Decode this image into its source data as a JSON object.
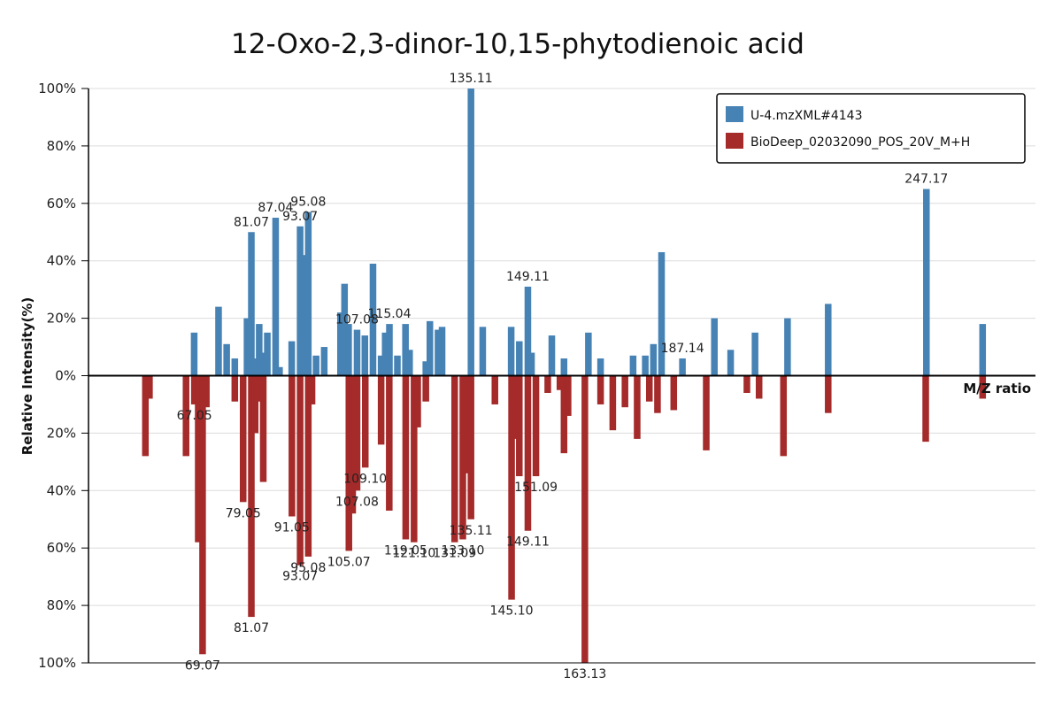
{
  "chart_data": {
    "type": "bar",
    "subtype": "mirror-spectrum",
    "title": "12-Oxo-2,3-dinor-10,15-phytodienoic acid",
    "xlabel": "M/Z ratio",
    "ylabel": "Relative Intensity(%)",
    "ylim": [
      -100,
      100
    ],
    "ytick_values": [
      100,
      80,
      60,
      40,
      20,
      0,
      -20,
      -40,
      -60,
      -80,
      -100
    ],
    "ytick_labels": [
      "100%",
      "80%",
      "60%",
      "40%",
      "20%",
      "0%",
      "20%",
      "40%",
      "60%",
      "80%",
      "100%"
    ],
    "x_range": [
      41,
      274
    ],
    "grid": true,
    "legend_position": "top-right",
    "series": [
      {
        "name": "U-4.mzXML#4143",
        "color": "#4682b4",
        "direction": "up",
        "points": [
          {
            "mz": 67.0,
            "i": 15
          },
          {
            "mz": 73.0,
            "i": 24
          },
          {
            "mz": 75.0,
            "i": 11
          },
          {
            "mz": 77.0,
            "i": 6
          },
          {
            "mz": 80.0,
            "i": 20
          },
          {
            "mz": 81.07,
            "i": 50
          },
          {
            "mz": 82.0,
            "i": 6
          },
          {
            "mz": 83.0,
            "i": 18
          },
          {
            "mz": 84.0,
            "i": 8
          },
          {
            "mz": 85.0,
            "i": 15
          },
          {
            "mz": 87.04,
            "i": 55
          },
          {
            "mz": 88.0,
            "i": 3
          },
          {
            "mz": 91.0,
            "i": 12
          },
          {
            "mz": 93.07,
            "i": 52
          },
          {
            "mz": 94.0,
            "i": 42
          },
          {
            "mz": 95.08,
            "i": 57
          },
          {
            "mz": 97.0,
            "i": 7
          },
          {
            "mz": 99.0,
            "i": 10
          },
          {
            "mz": 103.0,
            "i": 22
          },
          {
            "mz": 104.0,
            "i": 32
          },
          {
            "mz": 105.0,
            "i": 18
          },
          {
            "mz": 107.08,
            "i": 16
          },
          {
            "mz": 109.0,
            "i": 14
          },
          {
            "mz": 111.0,
            "i": 39
          },
          {
            "mz": 113.0,
            "i": 7
          },
          {
            "mz": 114.0,
            "i": 15
          },
          {
            "mz": 115.04,
            "i": 18
          },
          {
            "mz": 117.0,
            "i": 7
          },
          {
            "mz": 119.0,
            "i": 18
          },
          {
            "mz": 120.0,
            "i": 9
          },
          {
            "mz": 124.0,
            "i": 5
          },
          {
            "mz": 125.0,
            "i": 19
          },
          {
            "mz": 127.0,
            "i": 16
          },
          {
            "mz": 128.0,
            "i": 17
          },
          {
            "mz": 135.11,
            "i": 100
          },
          {
            "mz": 138.0,
            "i": 17
          },
          {
            "mz": 145.0,
            "i": 17
          },
          {
            "mz": 147.0,
            "i": 12
          },
          {
            "mz": 149.11,
            "i": 31
          },
          {
            "mz": 150.0,
            "i": 8
          },
          {
            "mz": 155.0,
            "i": 14
          },
          {
            "mz": 158.0,
            "i": 6
          },
          {
            "mz": 164.0,
            "i": 15
          },
          {
            "mz": 167.0,
            "i": 6
          },
          {
            "mz": 175.0,
            "i": 7
          },
          {
            "mz": 178.0,
            "i": 7
          },
          {
            "mz": 180.0,
            "i": 11
          },
          {
            "mz": 182.0,
            "i": 43
          },
          {
            "mz": 187.14,
            "i": 6
          },
          {
            "mz": 195.0,
            "i": 20
          },
          {
            "mz": 199.0,
            "i": 9
          },
          {
            "mz": 205.0,
            "i": 15
          },
          {
            "mz": 213.0,
            "i": 20
          },
          {
            "mz": 223.0,
            "i": 25
          },
          {
            "mz": 247.17,
            "i": 65
          },
          {
            "mz": 261.0,
            "i": 18
          }
        ],
        "labels": [
          {
            "mz": 81.07,
            "text": "81.07"
          },
          {
            "mz": 87.04,
            "text": "87.04"
          },
          {
            "mz": 93.07,
            "text": "93.07"
          },
          {
            "mz": 95.08,
            "text": "95.08"
          },
          {
            "mz": 107.08,
            "text": "107.08"
          },
          {
            "mz": 115.04,
            "text": "115.04"
          },
          {
            "mz": 135.11,
            "text": "135.11"
          },
          {
            "mz": 149.11,
            "text": "149.11"
          },
          {
            "mz": 187.14,
            "text": "187.14"
          },
          {
            "mz": 247.17,
            "text": "247.17"
          }
        ]
      },
      {
        "name": "BioDeep_02032090_POS_20V_M+H",
        "color": "#a52a2a",
        "direction": "down",
        "points": [
          {
            "mz": 55.0,
            "i": 28
          },
          {
            "mz": 56.0,
            "i": 8
          },
          {
            "mz": 65.0,
            "i": 28
          },
          {
            "mz": 67.05,
            "i": 10
          },
          {
            "mz": 68.0,
            "i": 58
          },
          {
            "mz": 69.07,
            "i": 97
          },
          {
            "mz": 70.0,
            "i": 11
          },
          {
            "mz": 77.0,
            "i": 9
          },
          {
            "mz": 79.05,
            "i": 44
          },
          {
            "mz": 81.07,
            "i": 84
          },
          {
            "mz": 82.0,
            "i": 20
          },
          {
            "mz": 83.0,
            "i": 9
          },
          {
            "mz": 84.0,
            "i": 37
          },
          {
            "mz": 91.05,
            "i": 49
          },
          {
            "mz": 93.07,
            "i": 66
          },
          {
            "mz": 95.08,
            "i": 63
          },
          {
            "mz": 96.0,
            "i": 10
          },
          {
            "mz": 105.07,
            "i": 61
          },
          {
            "mz": 106.0,
            "i": 48
          },
          {
            "mz": 107.08,
            "i": 40
          },
          {
            "mz": 109.1,
            "i": 32
          },
          {
            "mz": 113.0,
            "i": 24
          },
          {
            "mz": 115.0,
            "i": 47
          },
          {
            "mz": 119.05,
            "i": 57
          },
          {
            "mz": 121.1,
            "i": 58
          },
          {
            "mz": 122.0,
            "i": 18
          },
          {
            "mz": 124.0,
            "i": 9
          },
          {
            "mz": 131.09,
            "i": 58
          },
          {
            "mz": 133.1,
            "i": 57
          },
          {
            "mz": 134.0,
            "i": 34
          },
          {
            "mz": 135.11,
            "i": 50
          },
          {
            "mz": 141.0,
            "i": 10
          },
          {
            "mz": 145.1,
            "i": 78
          },
          {
            "mz": 146.0,
            "i": 22
          },
          {
            "mz": 147.0,
            "i": 35
          },
          {
            "mz": 149.11,
            "i": 54
          },
          {
            "mz": 151.09,
            "i": 35
          },
          {
            "mz": 154.0,
            "i": 6
          },
          {
            "mz": 157.0,
            "i": 5
          },
          {
            "mz": 158.0,
            "i": 27
          },
          {
            "mz": 159.0,
            "i": 14
          },
          {
            "mz": 163.13,
            "i": 100
          },
          {
            "mz": 167.0,
            "i": 10
          },
          {
            "mz": 170.0,
            "i": 19
          },
          {
            "mz": 173.0,
            "i": 11
          },
          {
            "mz": 176.0,
            "i": 22
          },
          {
            "mz": 179.0,
            "i": 9
          },
          {
            "mz": 181.0,
            "i": 13
          },
          {
            "mz": 185.0,
            "i": 12
          },
          {
            "mz": 193.0,
            "i": 26
          },
          {
            "mz": 203.0,
            "i": 6
          },
          {
            "mz": 206.0,
            "i": 8
          },
          {
            "mz": 212.0,
            "i": 28
          },
          {
            "mz": 223.0,
            "i": 13
          },
          {
            "mz": 247.0,
            "i": 23
          },
          {
            "mz": 261.0,
            "i": 8
          }
        ],
        "labels": [
          {
            "mz": 67.05,
            "text": "67.05"
          },
          {
            "mz": 69.07,
            "text": "69.07"
          },
          {
            "mz": 79.05,
            "text": "79.05"
          },
          {
            "mz": 81.07,
            "text": "81.07"
          },
          {
            "mz": 91.05,
            "text": "91.05"
          },
          {
            "mz": 93.07,
            "text": "93.07"
          },
          {
            "mz": 95.08,
            "text": "95.08"
          },
          {
            "mz": 105.07,
            "text": "105.07"
          },
          {
            "mz": 107.08,
            "text": "107.08"
          },
          {
            "mz": 109.1,
            "text": "109.10"
          },
          {
            "mz": 119.05,
            "text": "119.05"
          },
          {
            "mz": 121.1,
            "text": "121.10"
          },
          {
            "mz": 131.09,
            "text": "131.09"
          },
          {
            "mz": 133.1,
            "text": "133.10"
          },
          {
            "mz": 135.11,
            "text": "135.11"
          },
          {
            "mz": 145.1,
            "text": "145.10"
          },
          {
            "mz": 149.11,
            "text": "149.11"
          },
          {
            "mz": 151.09,
            "text": "151.09"
          },
          {
            "mz": 163.13,
            "text": "163.13"
          }
        ]
      }
    ]
  }
}
